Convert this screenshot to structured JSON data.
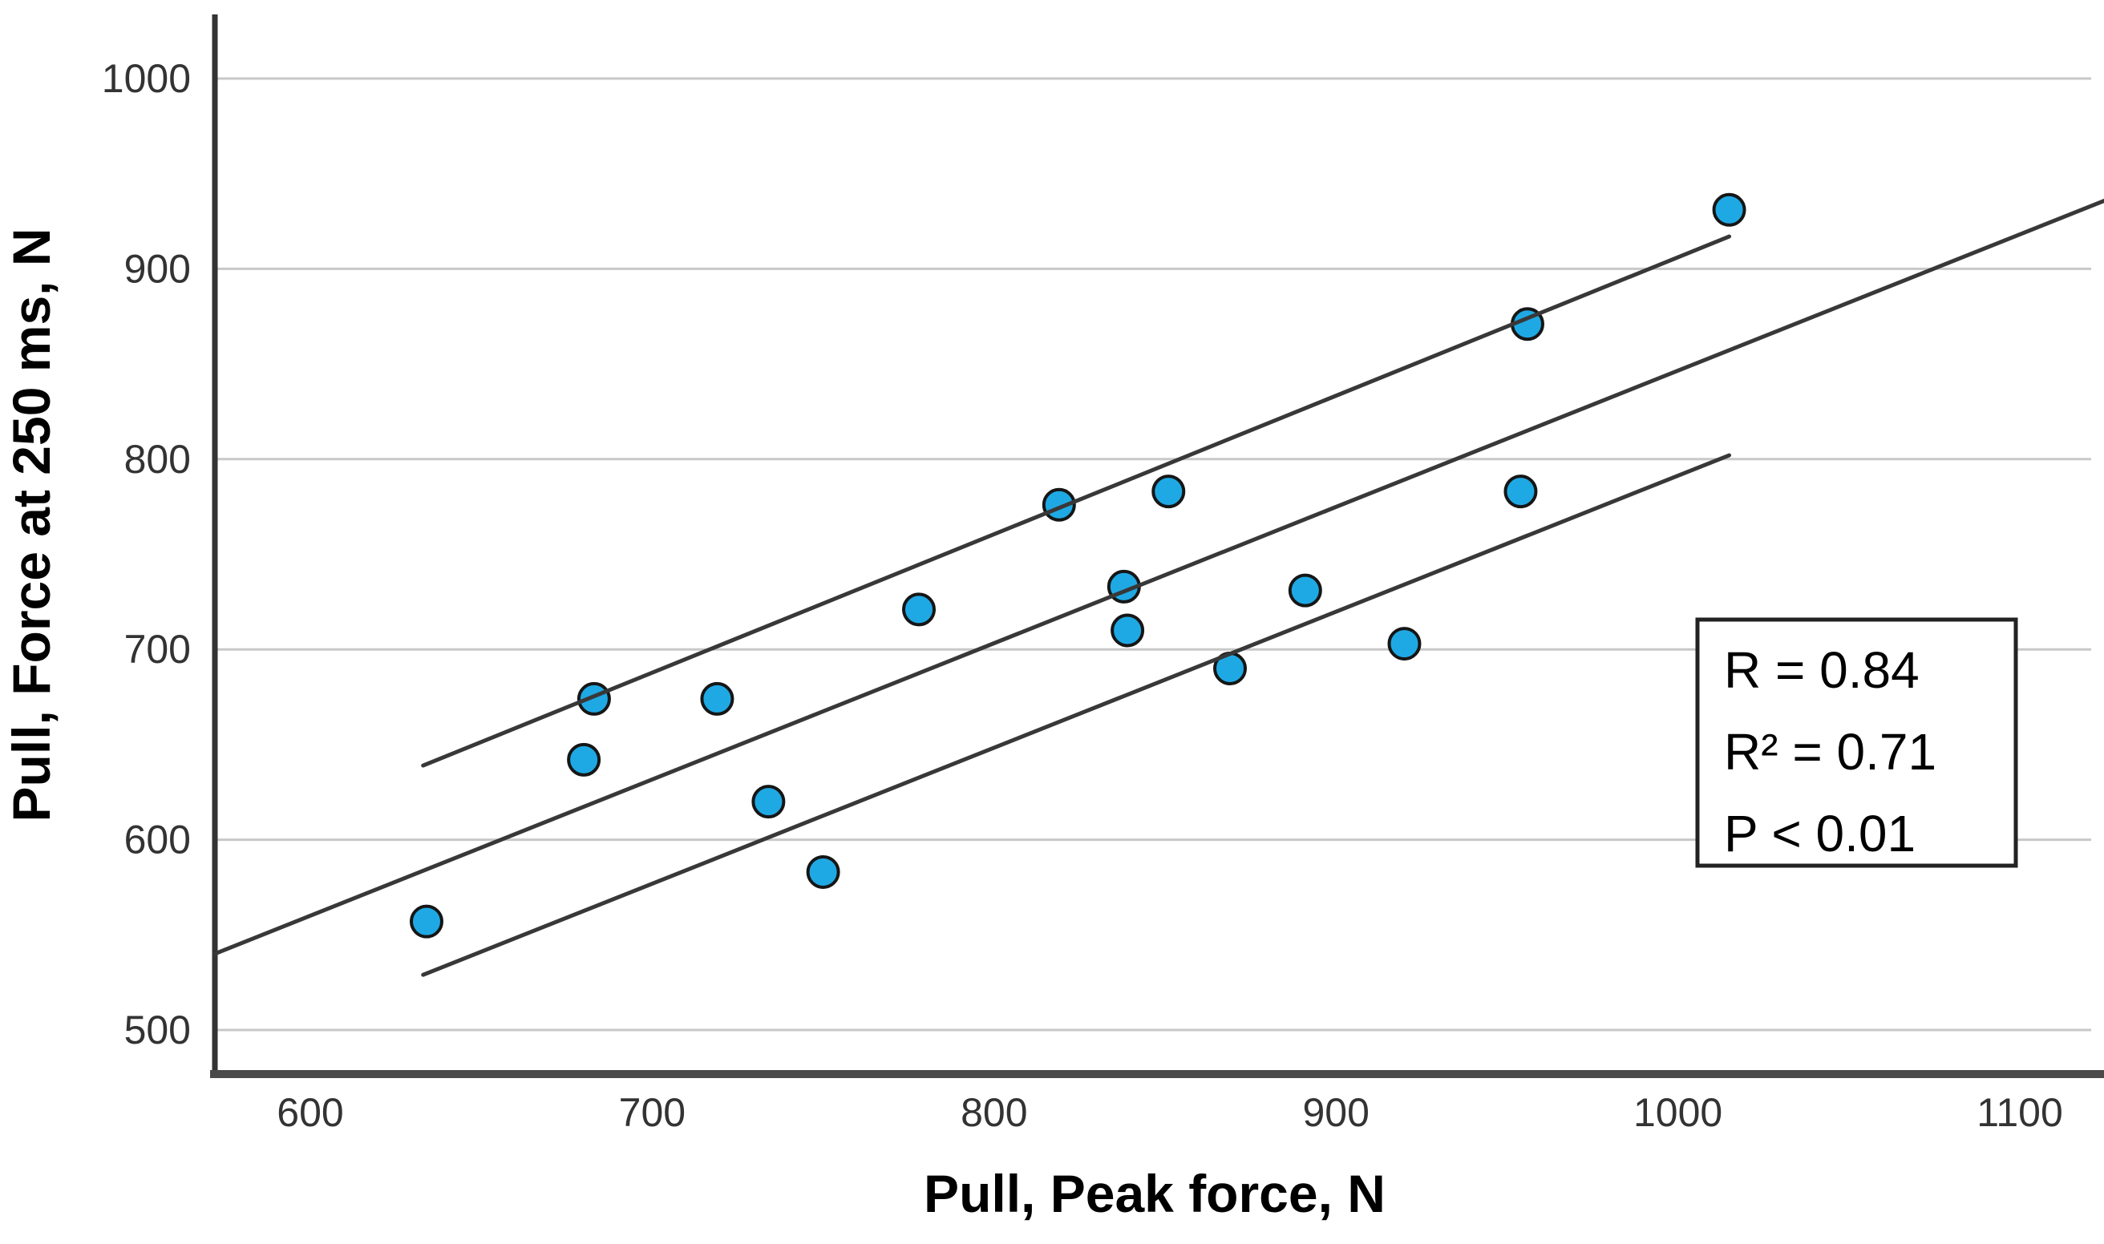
{
  "chart_data": {
    "type": "scatter",
    "title": "",
    "xlabel": "Pull, Peak force, N",
    "ylabel": "Pull, Force at 250 ms, N",
    "xlim": [
      572,
      1125
    ],
    "ylim": [
      478,
      1033
    ],
    "x_ticks": [
      600,
      700,
      800,
      900,
      1000,
      1100
    ],
    "y_ticks": [
      1000,
      900,
      800,
      700,
      600,
      500
    ],
    "grid": "horizontal-only",
    "legend": "none",
    "points": [
      [
        634,
        557
      ],
      [
        680,
        642
      ],
      [
        683,
        674
      ],
      [
        719,
        674
      ],
      [
        734,
        620
      ],
      [
        750,
        583
      ],
      [
        778,
        721
      ],
      [
        819,
        776
      ],
      [
        838,
        733
      ],
      [
        839,
        710
      ],
      [
        851,
        783
      ],
      [
        869,
        690
      ],
      [
        891,
        731
      ],
      [
        920,
        703
      ],
      [
        954,
        783
      ],
      [
        956,
        871
      ],
      [
        1015,
        931
      ]
    ],
    "fit_lines": [
      {
        "name": "regression-line",
        "x1": 572,
        "y1": 540,
        "x2": 1125,
        "y2": 936
      },
      {
        "name": "ci-upper-line",
        "x1": 633,
        "y1": 639,
        "x2": 1015,
        "y2": 917
      },
      {
        "name": "ci-lower-line",
        "x1": 633,
        "y1": 529,
        "x2": 1015,
        "y2": 802
      }
    ],
    "annotation": {
      "lines": [
        "R = 0.84",
        "R² = 0.71",
        "P < 0.01"
      ]
    },
    "colors": {
      "point_fill": "#1FA9E4",
      "point_stroke": "#161616",
      "grid": "#c8c8c8",
      "y_axis": "#333333",
      "x_axis": "#4a4a4a",
      "fit_line": "#383838",
      "annotation_border": "#222222",
      "text": "#000000",
      "tick_text": "#333333"
    }
  }
}
